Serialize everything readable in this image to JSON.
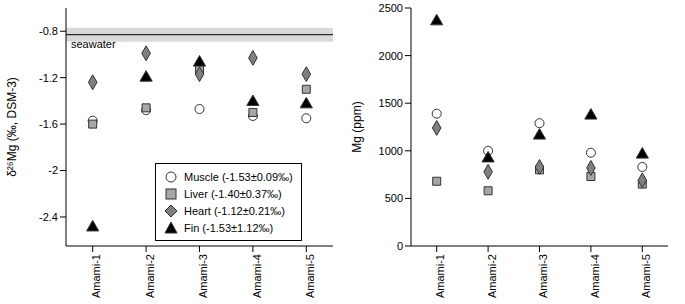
{
  "chart_data": [
    {
      "type": "scatter",
      "ylabel": "δ²⁶Mg (‰, DSM-3)",
      "categories": [
        "Amami-1",
        "Amami-2",
        "Amami-3",
        "Amami-4",
        "Amami-5"
      ],
      "ylim": [
        -2.65,
        -0.6
      ],
      "yticks": [
        -2.4,
        -2.0,
        -1.6,
        -1.2,
        -0.8
      ],
      "reference": {
        "label": "seawater",
        "value": -0.83,
        "range": [
          -0.89,
          -0.77
        ]
      },
      "legend": "lower right",
      "series": [
        {
          "name": "Muscle (-1.53±0.09‰)",
          "color": "#ffffff",
          "marker": "circle",
          "values": [
            -1.57,
            -1.48,
            -1.47,
            -1.53,
            -1.55
          ]
        },
        {
          "name": "Liver (-1.40±0.37‰)",
          "color": "#a6a6a6",
          "marker": "square",
          "values": [
            -1.6,
            -1.46,
            -1.13,
            -1.5,
            -1.3
          ]
        },
        {
          "name": "Heart (-1.12±0.21‰)",
          "color": "#7f7f7f",
          "marker": "diamond",
          "values": [
            -1.24,
            -0.99,
            -1.17,
            -1.03,
            -1.17
          ]
        },
        {
          "name": "Fin (-1.53±1.12‰)",
          "color": "#000000",
          "marker": "triangle",
          "values": [
            -2.49,
            -1.2,
            -1.07,
            -1.41,
            -1.43
          ]
        }
      ]
    },
    {
      "type": "scatter",
      "ylabel": "Mg (ppm)",
      "categories": [
        "Amami-1",
        "Amami-2",
        "Amami-3",
        "Amami-4",
        "Amami-5"
      ],
      "ylim": [
        0,
        2500
      ],
      "yticks": [
        0,
        500,
        1000,
        1500,
        2000,
        2500
      ],
      "series": [
        {
          "name": "Muscle",
          "color": "#ffffff",
          "marker": "circle",
          "values": [
            1390,
            1000,
            1290,
            980,
            830
          ]
        },
        {
          "name": "Liver",
          "color": "#a6a6a6",
          "marker": "square",
          "values": [
            680,
            580,
            800,
            730,
            650
          ]
        },
        {
          "name": "Heart",
          "color": "#7f7f7f",
          "marker": "diamond",
          "values": [
            1240,
            780,
            830,
            820,
            690
          ]
        },
        {
          "name": "Fin",
          "color": "#000000",
          "marker": "triangle",
          "values": [
            2360,
            920,
            1160,
            1370,
            960
          ]
        }
      ]
    }
  ]
}
